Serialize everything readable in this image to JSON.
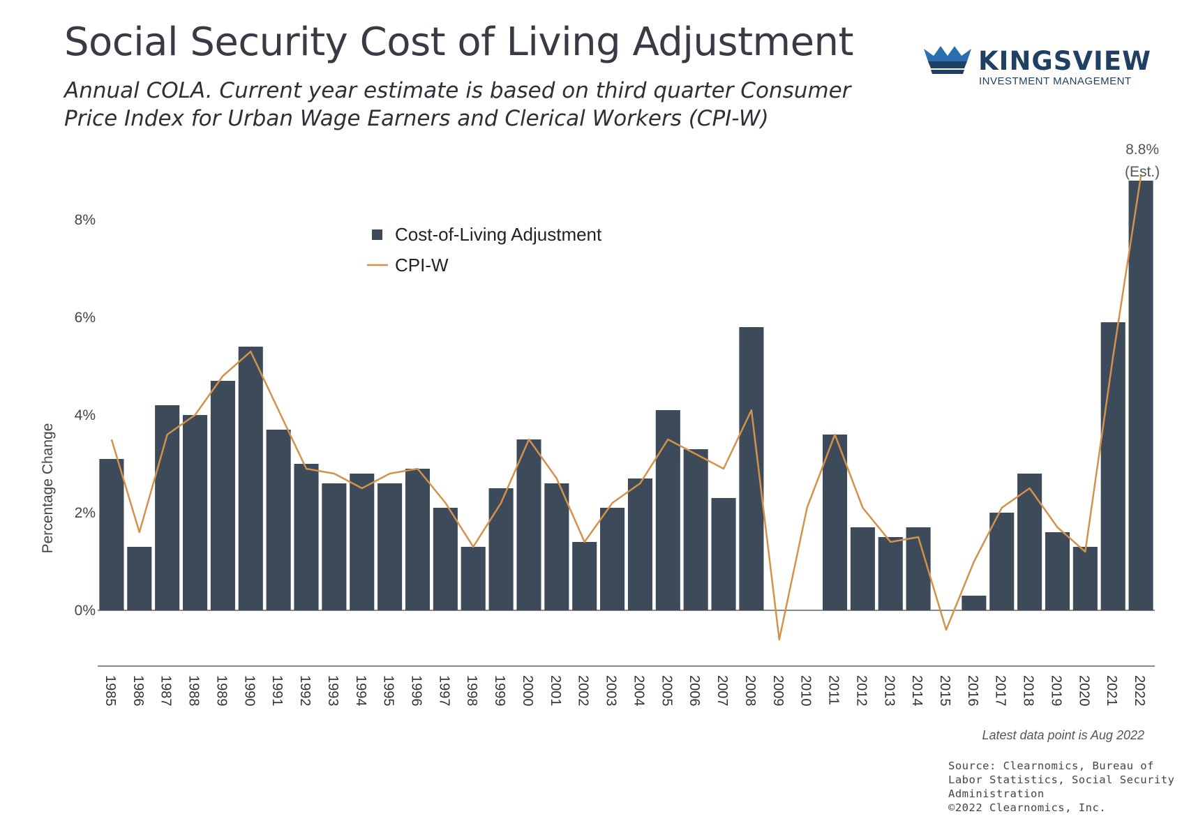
{
  "header": {
    "title": "Social Security Cost of Living Adjustment",
    "subtitle": "Annual COLA. Current year estimate is based on third quarter Consumer Price Index for Urban Wage Earners and Clerical Workers (CPI-W)"
  },
  "logo": {
    "name": "KINGSVIEW",
    "tagline": "INVESTMENT MANAGEMENT"
  },
  "colors": {
    "bar": "#3d4a5a",
    "line": "#d4914a",
    "axis": "#444444"
  },
  "chart_data": {
    "type": "bar",
    "title": "Social Security Cost of Living Adjustment",
    "ylabel": "Percentage Change",
    "xlabel": "",
    "ylim": [
      -1.2,
      9.5
    ],
    "yticks": [
      0,
      2,
      4,
      6,
      8
    ],
    "ytick_labels": [
      "0%",
      "2%",
      "4%",
      "6%",
      "8%"
    ],
    "legend_position": "top-left",
    "categories": [
      "1985",
      "1986",
      "1987",
      "1988",
      "1989",
      "1990",
      "1991",
      "1992",
      "1993",
      "1994",
      "1995",
      "1996",
      "1997",
      "1998",
      "1999",
      "2000",
      "2001",
      "2002",
      "2003",
      "2004",
      "2005",
      "2006",
      "2007",
      "2008",
      "2009",
      "2010",
      "2011",
      "2012",
      "2013",
      "2014",
      "2015",
      "2016",
      "2017",
      "2018",
      "2019",
      "2020",
      "2021",
      "2022"
    ],
    "series": [
      {
        "name": "Cost-of-Living Adjustment",
        "kind": "bar",
        "values": [
          3.1,
          1.3,
          4.2,
          4.0,
          4.7,
          5.4,
          3.7,
          3.0,
          2.6,
          2.8,
          2.6,
          2.9,
          2.1,
          1.3,
          2.5,
          3.5,
          2.6,
          1.4,
          2.1,
          2.7,
          4.1,
          3.3,
          2.3,
          5.8,
          0.0,
          0.0,
          3.6,
          1.7,
          1.5,
          1.7,
          0.0,
          0.3,
          2.0,
          2.8,
          1.6,
          1.3,
          5.9,
          8.8
        ]
      },
      {
        "name": "CPI-W",
        "kind": "line",
        "values": [
          3.5,
          1.6,
          3.6,
          4.0,
          4.8,
          5.3,
          4.1,
          2.9,
          2.8,
          2.5,
          2.8,
          2.9,
          2.2,
          1.3,
          2.2,
          3.5,
          2.7,
          1.4,
          2.2,
          2.6,
          3.5,
          3.2,
          2.9,
          4.1,
          -0.6,
          2.1,
          3.6,
          2.1,
          1.4,
          1.5,
          -0.4,
          1.0,
          2.1,
          2.5,
          1.7,
          1.2,
          5.2,
          8.9
        ]
      }
    ],
    "annotations": [
      {
        "category": "2022",
        "line1": "8.8%",
        "line2": "(Est.)"
      }
    ]
  },
  "footer": {
    "note": "Latest data point is Aug 2022",
    "source_lines": [
      "Source: Clearnomics, Bureau of",
      "Labor Statistics, Social Security",
      "Administration",
      "©2022 Clearnomics, Inc."
    ]
  }
}
